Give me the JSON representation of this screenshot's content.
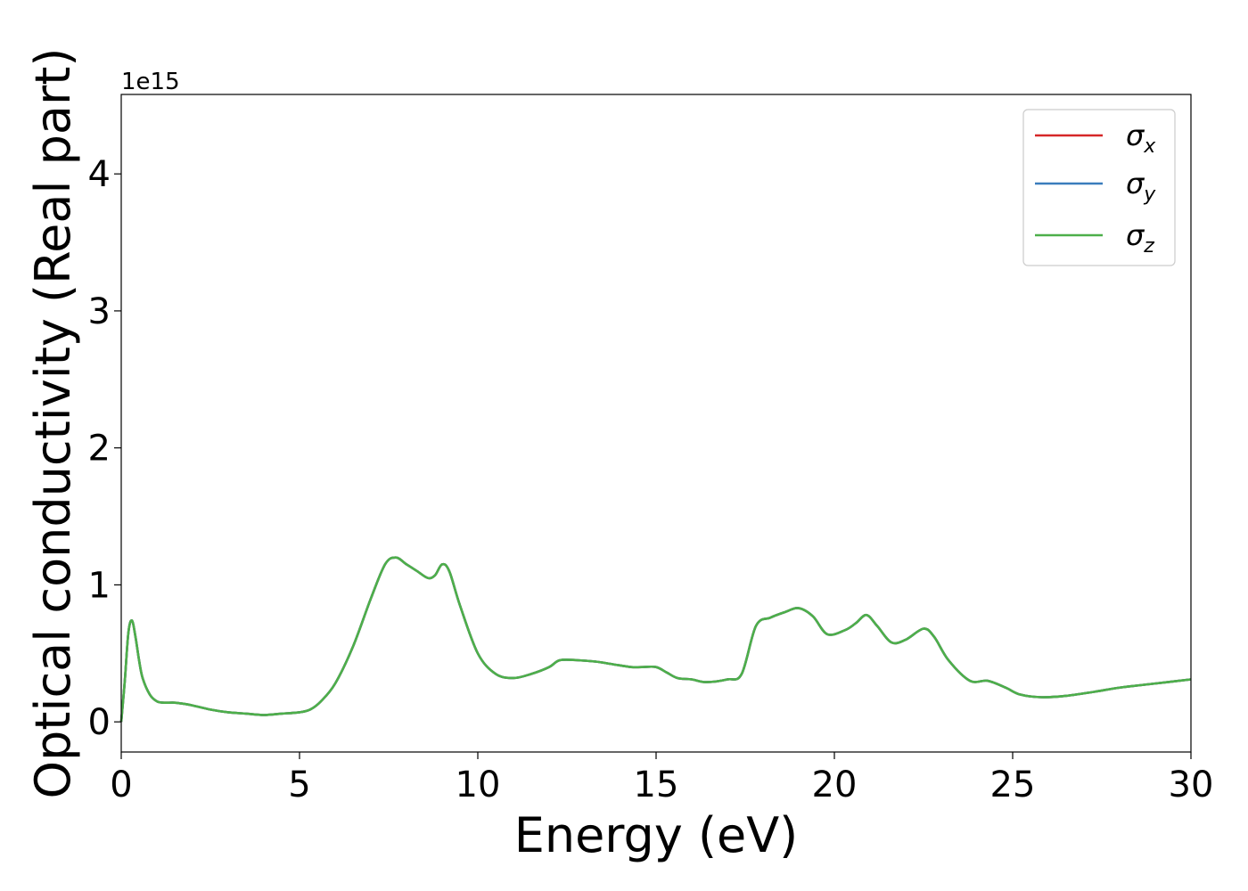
{
  "chart_data": {
    "type": "line",
    "xlabel": "Energy (eV)",
    "ylabel": "Optical conductivity (Real part)",
    "y_offset_label": "1e15",
    "xlim": [
      0,
      30
    ],
    "ylim": [
      -0.22,
      4.58
    ],
    "x_ticks": [
      "0",
      "5",
      "10",
      "15",
      "20",
      "25",
      "30"
    ],
    "y_ticks": [
      "0",
      "1",
      "2",
      "3",
      "4"
    ],
    "grid": false,
    "legend_position": "top-right",
    "legend": [
      {
        "symbol": "σ",
        "subscript": "x",
        "color": "#d62728"
      },
      {
        "symbol": "σ",
        "subscript": "y",
        "color": "#3a7dbc"
      },
      {
        "symbol": "σ",
        "subscript": "z",
        "color": "#4daf4a"
      }
    ],
    "series": [
      {
        "name": "σx",
        "color": "#d62728",
        "x": [
          0,
          0.1,
          0.2,
          0.3,
          0.4,
          0.5,
          0.6,
          0.8,
          1.0,
          1.2,
          1.5,
          1.8,
          2.0,
          2.5,
          3.0,
          3.5,
          4.0,
          4.5,
          5.0,
          5.3,
          5.6,
          6.0,
          6.5,
          7.0,
          7.4,
          7.7,
          8.0,
          8.3,
          8.6,
          8.8,
          9.0,
          9.2,
          9.5,
          10.0,
          10.5,
          11.0,
          11.5,
          12.0,
          12.3,
          12.8,
          13.3,
          13.8,
          14.3,
          14.6,
          15.0,
          15.3,
          15.6,
          16.0,
          16.4,
          17.0,
          17.4,
          17.8,
          18.2,
          18.6,
          19.0,
          19.4,
          19.8,
          20.3,
          20.6,
          20.9,
          21.2,
          21.6,
          22.0,
          22.5,
          22.8,
          23.2,
          23.8,
          24.3,
          24.8,
          25.2,
          25.8,
          26.5,
          27.3,
          28.0,
          29.0,
          30.0
        ],
        "y": [
          0.0,
          0.3,
          0.65,
          0.74,
          0.62,
          0.45,
          0.32,
          0.2,
          0.15,
          0.14,
          0.14,
          0.13,
          0.12,
          0.09,
          0.07,
          0.06,
          0.05,
          0.06,
          0.07,
          0.09,
          0.15,
          0.28,
          0.55,
          0.9,
          1.15,
          1.2,
          1.15,
          1.1,
          1.05,
          1.07,
          1.15,
          1.1,
          0.85,
          0.5,
          0.35,
          0.32,
          0.35,
          0.4,
          0.45,
          0.45,
          0.44,
          0.42,
          0.4,
          0.4,
          0.4,
          0.36,
          0.32,
          0.31,
          0.29,
          0.31,
          0.35,
          0.7,
          0.76,
          0.8,
          0.83,
          0.77,
          0.64,
          0.67,
          0.72,
          0.78,
          0.7,
          0.58,
          0.6,
          0.68,
          0.62,
          0.45,
          0.3,
          0.3,
          0.25,
          0.2,
          0.18,
          0.19,
          0.22,
          0.25,
          0.28,
          0.31
        ]
      },
      {
        "name": "σy",
        "color": "#3a7dbc",
        "x": [
          0,
          0.1,
          0.2,
          0.3,
          0.4,
          0.5,
          0.6,
          0.8,
          1.0,
          1.2,
          1.5,
          1.8,
          2.0,
          2.5,
          3.0,
          3.5,
          4.0,
          4.5,
          5.0,
          5.3,
          5.6,
          6.0,
          6.5,
          7.0,
          7.4,
          7.7,
          8.0,
          8.3,
          8.6,
          8.8,
          9.0,
          9.2,
          9.5,
          10.0,
          10.5,
          11.0,
          11.5,
          12.0,
          12.3,
          12.8,
          13.3,
          13.8,
          14.3,
          14.6,
          15.0,
          15.3,
          15.6,
          16.0,
          16.4,
          17.0,
          17.4,
          17.8,
          18.2,
          18.6,
          19.0,
          19.4,
          19.8,
          20.3,
          20.6,
          20.9,
          21.2,
          21.6,
          22.0,
          22.5,
          22.8,
          23.2,
          23.8,
          24.3,
          24.8,
          25.2,
          25.8,
          26.5,
          27.3,
          28.0,
          29.0,
          30.0
        ],
        "y": [
          0.0,
          0.3,
          0.65,
          0.74,
          0.62,
          0.45,
          0.32,
          0.2,
          0.15,
          0.14,
          0.14,
          0.13,
          0.12,
          0.09,
          0.07,
          0.06,
          0.05,
          0.06,
          0.07,
          0.09,
          0.15,
          0.28,
          0.55,
          0.9,
          1.15,
          1.2,
          1.15,
          1.1,
          1.05,
          1.07,
          1.15,
          1.1,
          0.85,
          0.5,
          0.35,
          0.32,
          0.35,
          0.4,
          0.45,
          0.45,
          0.44,
          0.42,
          0.4,
          0.4,
          0.4,
          0.36,
          0.32,
          0.31,
          0.29,
          0.31,
          0.35,
          0.7,
          0.76,
          0.8,
          0.83,
          0.77,
          0.64,
          0.67,
          0.72,
          0.78,
          0.7,
          0.58,
          0.6,
          0.68,
          0.62,
          0.45,
          0.3,
          0.3,
          0.25,
          0.2,
          0.18,
          0.19,
          0.22,
          0.25,
          0.28,
          0.31
        ]
      },
      {
        "name": "σz",
        "color": "#4daf4a",
        "x": [
          0,
          0.1,
          0.2,
          0.3,
          0.4,
          0.5,
          0.6,
          0.8,
          1.0,
          1.2,
          1.5,
          1.8,
          2.0,
          2.5,
          3.0,
          3.5,
          4.0,
          4.5,
          5.0,
          5.3,
          5.6,
          6.0,
          6.5,
          7.0,
          7.4,
          7.7,
          8.0,
          8.3,
          8.6,
          8.8,
          9.0,
          9.2,
          9.5,
          10.0,
          10.5,
          11.0,
          11.5,
          12.0,
          12.3,
          12.8,
          13.3,
          13.8,
          14.3,
          14.6,
          15.0,
          15.3,
          15.6,
          16.0,
          16.4,
          17.0,
          17.4,
          17.8,
          18.2,
          18.6,
          19.0,
          19.4,
          19.8,
          20.3,
          20.6,
          20.9,
          21.2,
          21.6,
          22.0,
          22.5,
          22.8,
          23.2,
          23.8,
          24.3,
          24.8,
          25.2,
          25.8,
          26.5,
          27.3,
          28.0,
          29.0,
          30.0
        ],
        "y": [
          0.0,
          0.3,
          0.65,
          0.74,
          0.62,
          0.45,
          0.32,
          0.2,
          0.15,
          0.14,
          0.14,
          0.13,
          0.12,
          0.09,
          0.07,
          0.06,
          0.05,
          0.06,
          0.07,
          0.09,
          0.15,
          0.28,
          0.55,
          0.9,
          1.15,
          1.2,
          1.15,
          1.1,
          1.05,
          1.07,
          1.15,
          1.1,
          0.85,
          0.5,
          0.35,
          0.32,
          0.35,
          0.4,
          0.45,
          0.45,
          0.44,
          0.42,
          0.4,
          0.4,
          0.4,
          0.36,
          0.32,
          0.31,
          0.29,
          0.31,
          0.35,
          0.7,
          0.76,
          0.8,
          0.83,
          0.77,
          0.64,
          0.67,
          0.72,
          0.78,
          0.7,
          0.58,
          0.6,
          0.68,
          0.62,
          0.45,
          0.3,
          0.3,
          0.25,
          0.2,
          0.18,
          0.19,
          0.22,
          0.25,
          0.28,
          0.31
        ]
      }
    ]
  }
}
